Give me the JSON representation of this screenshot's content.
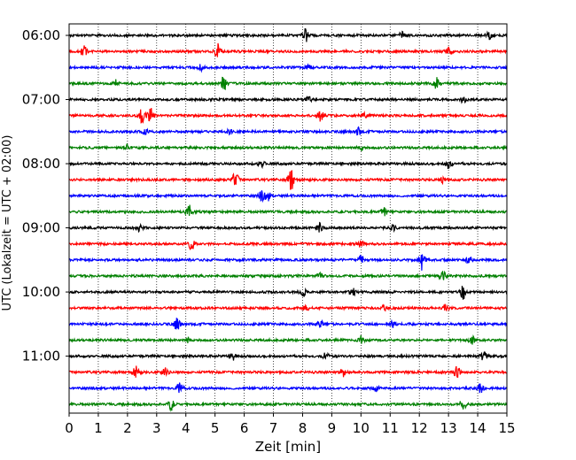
{
  "chart_data": {
    "type": "line",
    "title": "",
    "xlabel": "Zeit  [min]",
    "ylabel": "UTC (Lokalzeit = UTC + 02:00)",
    "xlim": [
      0,
      15
    ],
    "x_ticks": [
      0,
      1,
      2,
      3,
      4,
      5,
      6,
      7,
      8,
      9,
      10,
      11,
      12,
      13,
      14,
      15
    ],
    "vertical_grid": true,
    "grid_style": "dotted",
    "y_tick_labels": [
      "06:00",
      "07:00",
      "08:00",
      "09:00",
      "10:00",
      "11:00"
    ],
    "rows_per_hour": 4,
    "trace_minutes": 15,
    "color_cycle": [
      "#000000",
      "#ff0000",
      "#0000ff",
      "#008000"
    ],
    "traces": [
      {
        "start": "06:00",
        "events": [
          {
            "t": 8.1,
            "amp": 1.0
          },
          {
            "t": 11.4,
            "amp": 0.5
          },
          {
            "t": 14.4,
            "amp": 0.6
          }
        ]
      },
      {
        "start": "06:15",
        "events": [
          {
            "t": 0.5,
            "amp": 0.9
          },
          {
            "t": 5.1,
            "amp": 1.3
          },
          {
            "t": 13.0,
            "amp": 0.7
          }
        ]
      },
      {
        "start": "06:30",
        "events": [
          {
            "t": 4.5,
            "amp": 0.5
          },
          {
            "t": 8.2,
            "amp": 0.4
          }
        ]
      },
      {
        "start": "06:45",
        "events": [
          {
            "t": 1.6,
            "amp": 0.6
          },
          {
            "t": 5.3,
            "amp": 1.1
          },
          {
            "t": 12.6,
            "amp": 0.9
          }
        ]
      },
      {
        "start": "07:00",
        "events": [
          {
            "t": 8.2,
            "amp": 0.4
          },
          {
            "t": 13.5,
            "amp": 0.5
          }
        ]
      },
      {
        "start": "07:15",
        "events": [
          {
            "t": 2.5,
            "amp": 1.1
          },
          {
            "t": 2.8,
            "amp": 1.2
          },
          {
            "t": 8.6,
            "amp": 0.9
          },
          {
            "t": 10.1,
            "amp": 0.5
          }
        ]
      },
      {
        "start": "07:30",
        "events": [
          {
            "t": 2.6,
            "amp": 0.4
          },
          {
            "t": 5.5,
            "amp": 0.4
          },
          {
            "t": 9.9,
            "amp": 0.6
          }
        ]
      },
      {
        "start": "07:45",
        "events": [
          {
            "t": 2.0,
            "amp": 0.5
          },
          {
            "t": 10.0,
            "amp": 0.4
          }
        ]
      },
      {
        "start": "08:00",
        "events": [
          {
            "t": 6.6,
            "amp": 0.6
          },
          {
            "t": 13.0,
            "amp": 0.8
          }
        ]
      },
      {
        "start": "08:15",
        "events": [
          {
            "t": 5.7,
            "amp": 1.2
          },
          {
            "t": 7.6,
            "amp": 1.8
          },
          {
            "t": 12.8,
            "amp": 0.6
          }
        ]
      },
      {
        "start": "08:30",
        "events": [
          {
            "t": 6.6,
            "amp": 0.7
          },
          {
            "t": 6.8,
            "amp": 0.8
          }
        ]
      },
      {
        "start": "08:45",
        "events": [
          {
            "t": 4.1,
            "amp": 1.2
          },
          {
            "t": 10.8,
            "amp": 0.7
          }
        ]
      },
      {
        "start": "09:00",
        "events": [
          {
            "t": 2.4,
            "amp": 0.5
          },
          {
            "t": 8.6,
            "amp": 0.7
          },
          {
            "t": 11.1,
            "amp": 0.4
          }
        ]
      },
      {
        "start": "09:15",
        "events": [
          {
            "t": 4.2,
            "amp": 0.9
          },
          {
            "t": 10.0,
            "amp": 0.4
          }
        ]
      },
      {
        "start": "09:30",
        "events": [
          {
            "t": 10.0,
            "amp": 0.7
          },
          {
            "t": 12.1,
            "amp": 1.6
          },
          {
            "t": 13.7,
            "amp": 0.5
          }
        ]
      },
      {
        "start": "09:45",
        "events": [
          {
            "t": 8.6,
            "amp": 0.4
          },
          {
            "t": 12.8,
            "amp": 0.9
          }
        ]
      },
      {
        "start": "10:00",
        "events": [
          {
            "t": 8.0,
            "amp": 0.9
          },
          {
            "t": 9.7,
            "amp": 0.7
          },
          {
            "t": 13.5,
            "amp": 1.1
          }
        ]
      },
      {
        "start": "10:15",
        "events": [
          {
            "t": 8.1,
            "amp": 0.5
          },
          {
            "t": 10.8,
            "amp": 0.4
          },
          {
            "t": 12.9,
            "amp": 0.5
          }
        ]
      },
      {
        "start": "10:30",
        "events": [
          {
            "t": 3.7,
            "amp": 1.0
          },
          {
            "t": 8.6,
            "amp": 0.6
          },
          {
            "t": 11.1,
            "amp": 0.5
          }
        ]
      },
      {
        "start": "10:45",
        "events": [
          {
            "t": 4.1,
            "amp": 0.4
          },
          {
            "t": 10.0,
            "amp": 0.6
          },
          {
            "t": 13.8,
            "amp": 0.6
          }
        ]
      },
      {
        "start": "11:00",
        "events": [
          {
            "t": 5.6,
            "amp": 0.6
          },
          {
            "t": 8.8,
            "amp": 0.5
          },
          {
            "t": 14.2,
            "amp": 0.7
          }
        ]
      },
      {
        "start": "11:15",
        "events": [
          {
            "t": 2.3,
            "amp": 0.9
          },
          {
            "t": 3.3,
            "amp": 0.8
          },
          {
            "t": 9.4,
            "amp": 0.7
          },
          {
            "t": 13.3,
            "amp": 1.0
          }
        ]
      },
      {
        "start": "11:30",
        "events": [
          {
            "t": 3.8,
            "amp": 0.8
          },
          {
            "t": 10.5,
            "amp": 0.5
          },
          {
            "t": 14.1,
            "amp": 0.7
          }
        ]
      },
      {
        "start": "11:45",
        "events": [
          {
            "t": 3.5,
            "amp": 0.9
          },
          {
            "t": 13.5,
            "amp": 0.9
          }
        ]
      }
    ]
  }
}
